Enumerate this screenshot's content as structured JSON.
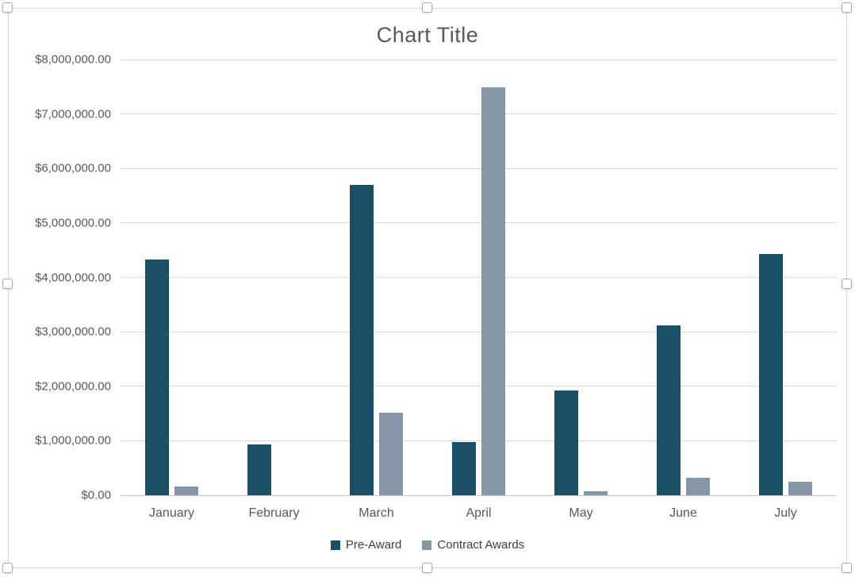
{
  "chart": {
    "title": "Chart Title",
    "colors": {
      "title_text": "#595959",
      "axis_text": "#595959",
      "legend_text": "#404040",
      "gridline": "#d9d9d9",
      "frame_border": "#d9d9d9"
    },
    "selection_handles": [
      "top-left",
      "top-center",
      "top-right",
      "middle-left",
      "middle-right",
      "bottom-left",
      "bottom-center",
      "bottom-right"
    ]
  },
  "chart_data": {
    "type": "bar",
    "title": "Chart Title",
    "categories": [
      "January",
      "February",
      "March",
      "April",
      "May",
      "June",
      "July"
    ],
    "series": [
      {
        "name": "Pre-Award",
        "color": "#1b4f68",
        "values": [
          4325000,
          930000,
          5700000,
          980000,
          1920000,
          3120000,
          4430000
        ]
      },
      {
        "name": "Contract Awards",
        "color": "#8596a7",
        "values": [
          165000,
          0,
          1515000,
          7490000,
          75000,
          325000,
          255000
        ]
      }
    ],
    "xlabel": "",
    "ylabel": "",
    "ylim": [
      0,
      8000000
    ],
    "ytick_step": 1000000,
    "y_ticks": [
      "$0.00",
      "$1,000,000.00",
      "$2,000,000.00",
      "$3,000,000.00",
      "$4,000,000.00",
      "$5,000,000.00",
      "$6,000,000.00",
      "$7,000,000.00",
      "$8,000,000.00"
    ],
    "grid": true,
    "legend_position": "bottom"
  }
}
